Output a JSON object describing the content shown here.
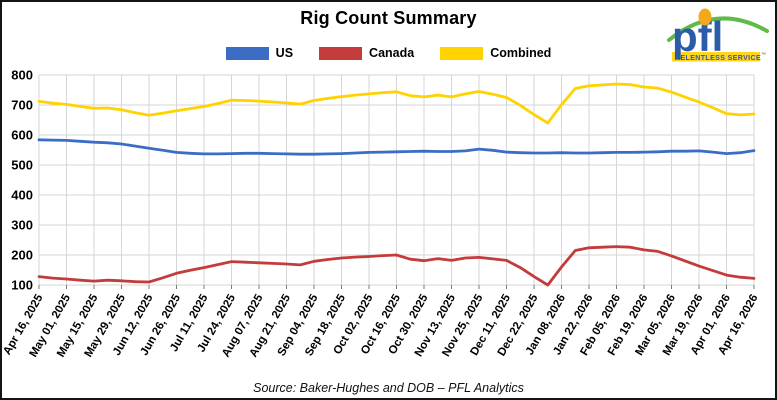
{
  "header": {
    "title": "Rig Count Summary"
  },
  "logo": {
    "text": "pfl",
    "tagline": "RELENTLESS SERVICE",
    "tm": "™",
    "wordmark_color": "#2C5BA7",
    "dot_color": "#F5A81C",
    "arc_color": "#5FBB46",
    "bar_color": "#FFD520"
  },
  "legend": {
    "items": [
      {
        "label": "US",
        "color": "#3C6DC5"
      },
      {
        "label": "Canada",
        "color": "#C43B3B"
      },
      {
        "label": "Combined",
        "color": "#FFD200"
      }
    ]
  },
  "source": {
    "text": "Source: Baker-Hughes and DOB – PFL Analytics"
  },
  "chart_data": {
    "type": "line",
    "title": "Rig Count Summary",
    "xlabel": "",
    "ylabel": "",
    "ylim": [
      100,
      800
    ],
    "y_ticks": [
      100,
      200,
      300,
      400,
      500,
      600,
      700,
      800
    ],
    "grid": true,
    "legend_position": "top",
    "sampling": "weekly samples; axis labels mark every other sample",
    "label_every": 2,
    "x_tick_labels": [
      "Apr 16, 2025",
      "May 01, 2025",
      "May 15, 2025",
      "May 29, 2025",
      "Jun 12, 2025",
      "Jun 26, 2025",
      "Jul 11, 2025",
      "Jul 24, 2025",
      "Aug 07, 2025",
      "Aug 21, 2025",
      "Sep 04, 2025",
      "Sep 18, 2025",
      "Oct 02, 2025",
      "Oct 16, 2025",
      "Oct 30, 2025",
      "Nov 13, 2025",
      "Nov 25, 2025",
      "Dec 11, 2025",
      "Dec 22, 2025",
      "Jan 08, 2026",
      "Jan 22, 2026",
      "Feb 05, 2026",
      "Feb 19, 2026",
      "Mar 05, 2026",
      "Mar 19, 2026",
      "Apr 01, 2026",
      "Apr 16, 2026"
    ],
    "series": [
      {
        "name": "US",
        "color": "#3C6DC5",
        "values": [
          584,
          583,
          582,
          579,
          576,
          574,
          570,
          563,
          556,
          549,
          542,
          539,
          537,
          537,
          538,
          539,
          539,
          538,
          537,
          536,
          536,
          537,
          538,
          540,
          542,
          543,
          544,
          545,
          546,
          545,
          545,
          547,
          553,
          549,
          543,
          541,
          540,
          540,
          541,
          540,
          540,
          541,
          542,
          542,
          543,
          544,
          546,
          546,
          547,
          543,
          538,
          541,
          548
        ]
      },
      {
        "name": "Canada",
        "color": "#C43B3B",
        "values": [
          128,
          123,
          120,
          116,
          113,
          116,
          114,
          111,
          110,
          124,
          139,
          149,
          158,
          168,
          178,
          176,
          174,
          172,
          170,
          167,
          179,
          185,
          190,
          193,
          195,
          198,
          200,
          186,
          181,
          188,
          182,
          190,
          192,
          187,
          182,
          158,
          128,
          100,
          160,
          215,
          224,
          226,
          228,
          226,
          217,
          212,
          197,
          180,
          163,
          148,
          133,
          126,
          122
        ]
      },
      {
        "name": "Combined",
        "color": "#FFD200",
        "values": [
          712,
          706,
          702,
          695,
          689,
          690,
          684,
          674,
          666,
          673,
          681,
          688,
          695,
          705,
          716,
          715,
          713,
          710,
          707,
          703,
          715,
          722,
          728,
          733,
          737,
          741,
          744,
          731,
          727,
          733,
          727,
          737,
          745,
          736,
          725,
          699,
          668,
          640,
          701,
          755,
          764,
          767,
          770,
          768,
          760,
          756,
          743,
          726,
          710,
          691,
          671,
          667,
          670
        ]
      }
    ]
  }
}
